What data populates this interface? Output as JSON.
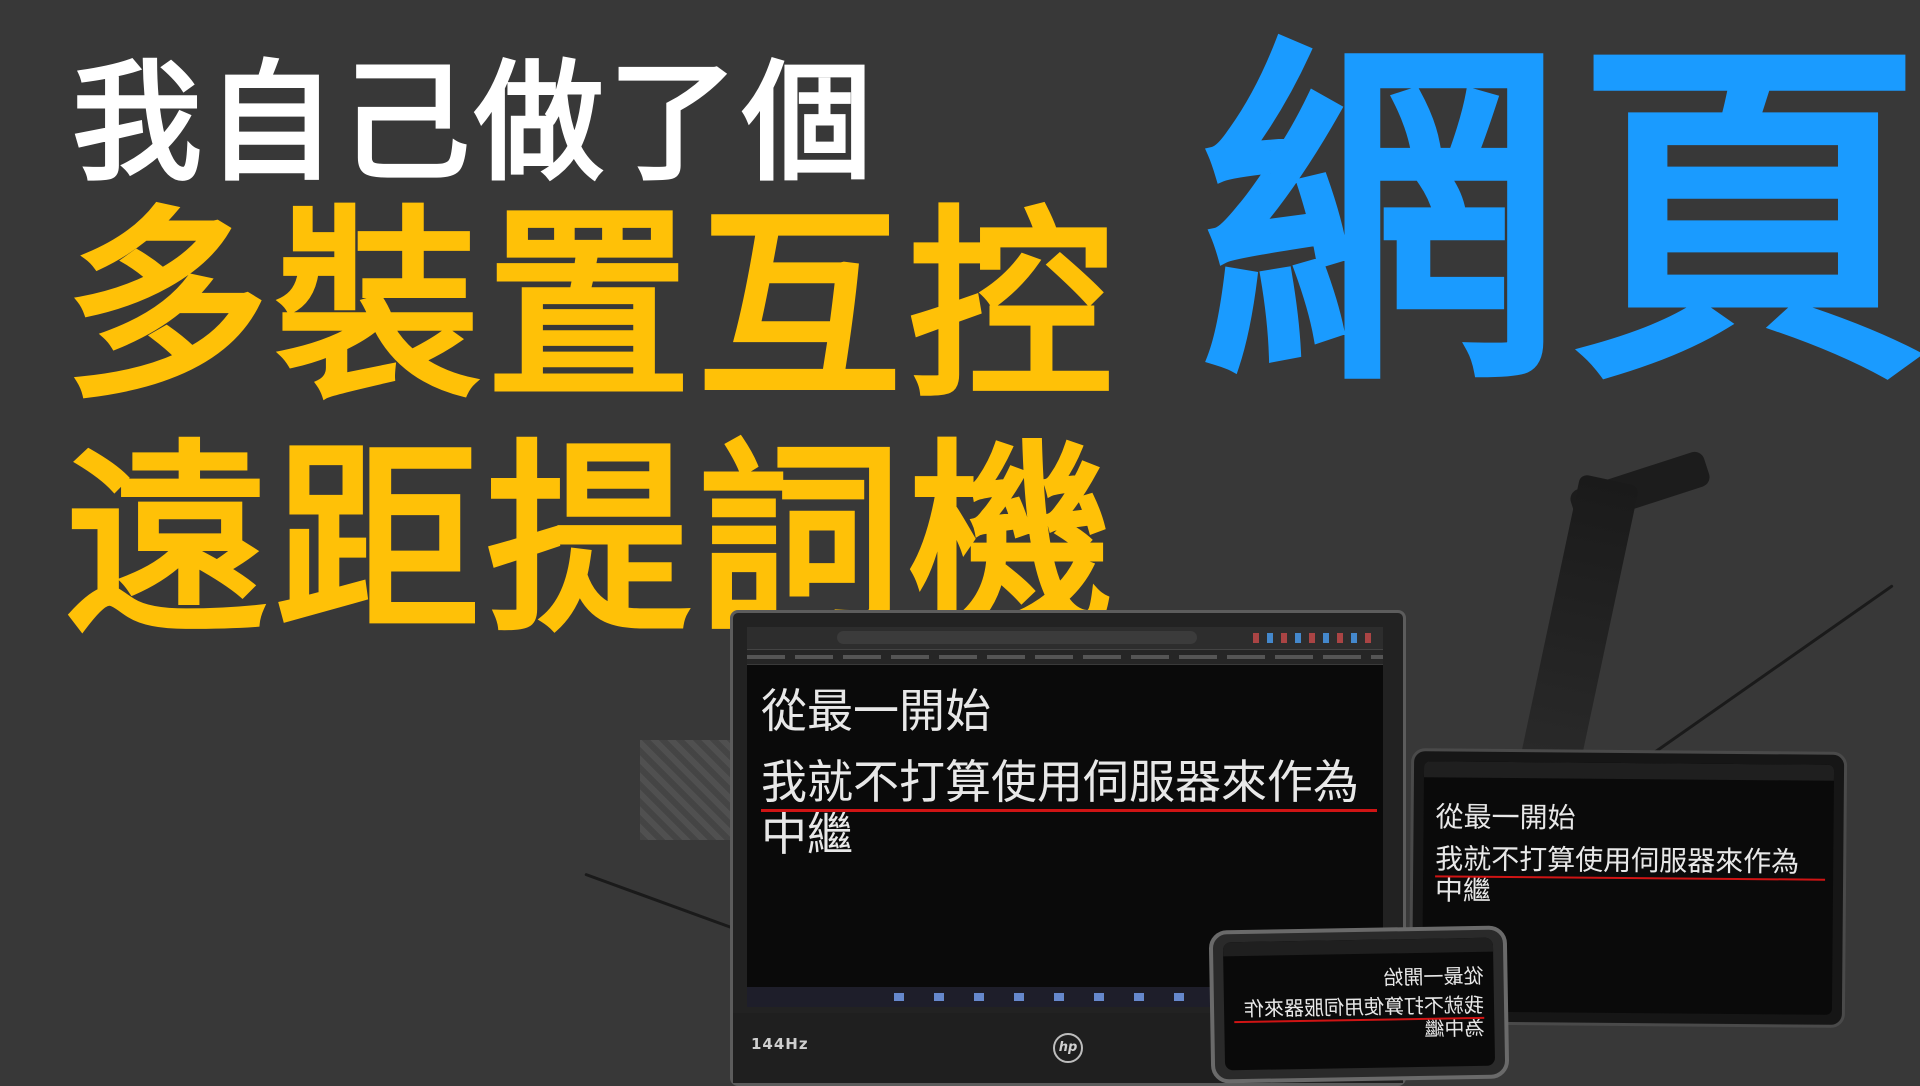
{
  "headline": {
    "line1": "我自己做了個",
    "line2": "多裝置互控",
    "line3": "遠距提詞機",
    "line4": "網頁"
  },
  "colors": {
    "background": "#383838",
    "white_text": "#ffffff",
    "yellow_text": "#ffc107",
    "blue_text": "#1a9bff",
    "reading_line": "#d01414"
  },
  "teleprompter": {
    "first_line": "從最一開始",
    "second_line": "我就不打算使用伺服器來作為中繼"
  },
  "laptop": {
    "brand_label": "144Hz",
    "logo": "hp"
  }
}
